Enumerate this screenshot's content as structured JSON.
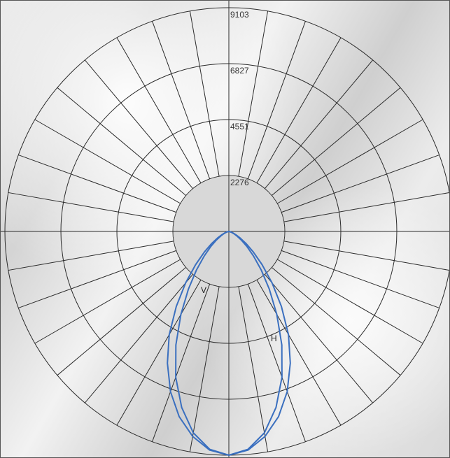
{
  "chart_data": {
    "type": "polar",
    "radial_ticks": [
      "2276",
      "4551",
      "6827",
      "9103"
    ],
    "rmax": 9103,
    "angle_step_deg": 10,
    "grid": true,
    "series": [
      {
        "name": "V",
        "color": "#3a6fbf",
        "angles_deg": [
          0,
          5,
          10,
          15,
          20,
          25,
          30,
          35,
          40,
          45,
          50,
          55,
          60,
          65,
          70,
          75,
          80,
          85,
          90
        ],
        "values": [
          9103,
          8898,
          8319,
          7413,
          6311,
          5096,
          3897,
          2865,
          2048,
          1420,
          969,
          635,
          402,
          245,
          136,
          64,
          20,
          3,
          0
        ]
      },
      {
        "name": "H",
        "color": "#3a6fbf",
        "angles_deg": [
          0,
          5,
          10,
          15,
          20,
          25,
          30,
          35,
          40,
          45,
          50,
          55,
          60,
          65,
          70,
          75,
          80,
          85,
          90
        ],
        "values": [
          9103,
          8930,
          8467,
          7799,
          6935,
          5910,
          4847,
          3723,
          2730,
          1911,
          1297,
          852,
          530,
          313,
          169,
          78,
          26,
          4,
          0
        ]
      }
    ]
  }
}
